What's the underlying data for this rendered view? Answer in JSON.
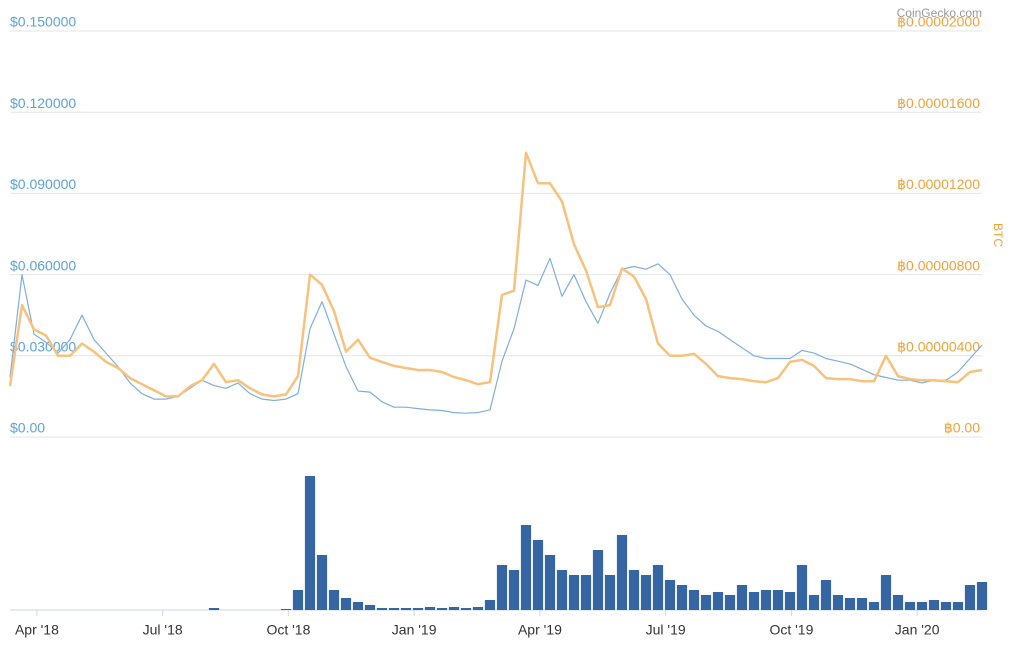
{
  "chart_data": {
    "type": "line",
    "watermark": "CoinGecko.com",
    "y2_label": "BTC",
    "xlim": [
      "2018-03",
      "2020-03"
    ],
    "xticks": [
      {
        "value": "2018-04",
        "label": "Apr '18"
      },
      {
        "value": "2018-07",
        "label": "Jul '18"
      },
      {
        "value": "2018-10",
        "label": "Oct '18"
      },
      {
        "value": "2019-01",
        "label": "Jan '19"
      },
      {
        "value": "2019-04",
        "label": "Apr '19"
      },
      {
        "value": "2019-07",
        "label": "Jul '19"
      },
      {
        "value": "2019-10",
        "label": "Oct '19"
      },
      {
        "value": "2020-01",
        "label": "Jan '20"
      }
    ],
    "ylim": [
      0,
      0.15
    ],
    "yticks": [
      {
        "value": 0,
        "label": "$0.00"
      },
      {
        "value": 0.03,
        "label": "$0.030000"
      },
      {
        "value": 0.06,
        "label": "$0.060000"
      },
      {
        "value": 0.09,
        "label": "$0.090000"
      },
      {
        "value": 0.12,
        "label": "$0.120000"
      },
      {
        "value": 0.15,
        "label": "$0.150000"
      }
    ],
    "y2lim": [
      0,
      2e-05
    ],
    "y2ticks": [
      {
        "value": 0,
        "label": "฿0.00"
      },
      {
        "value": 4e-06,
        "label": "฿0.00000400"
      },
      {
        "value": 8e-06,
        "label": "฿0.00000800"
      },
      {
        "value": 1.2e-05,
        "label": "฿0.00001200"
      },
      {
        "value": 1.6e-05,
        "label": "฿0.00001600"
      },
      {
        "value": 2e-05,
        "label": "฿0.00002000"
      }
    ],
    "grid": true,
    "series": [
      {
        "color": "#7eaee0",
        "values": [
          0.022,
          0.06,
          0.038,
          0.035,
          0.031,
          0.036,
          0.045,
          0.036,
          0.031,
          0.026,
          0.02,
          0.016,
          0.014,
          0.014,
          0.015,
          0.018,
          0.021,
          0.019,
          0.018,
          0.02,
          0.016,
          0.014,
          0.0135,
          0.014,
          0.016,
          0.04,
          0.05,
          0.038,
          0.026,
          0.017,
          0.0166,
          0.013,
          0.011,
          0.011,
          0.0105,
          0.01,
          0.0098,
          0.009,
          0.0088,
          0.009,
          0.01,
          0.028,
          0.04,
          0.058,
          0.056,
          0.066,
          0.052,
          0.06,
          0.05,
          0.042,
          0.053,
          0.062,
          0.063,
          0.062,
          0.064,
          0.06,
          0.051,
          0.045,
          0.041,
          0.039,
          0.036,
          0.033,
          0.03,
          0.029,
          0.029,
          0.029,
          0.032,
          0.031,
          0.029,
          0.028,
          0.027,
          0.025,
          0.023,
          0.022,
          0.021,
          0.021,
          0.02,
          0.021,
          0.021,
          0.024,
          0.029,
          0.034
        ]
      },
      {
        "axis": "y2",
        "color": "#f6c27c",
        "values": [
          2.5e-06,
          6.5e-06,
          5.3e-06,
          5e-06,
          4e-06,
          4e-06,
          4.6e-06,
          4.2e-06,
          3.7e-06,
          3.4e-06,
          2.9e-06,
          2.6e-06,
          2.3e-06,
          2e-06,
          2e-06,
          2.5e-06,
          2.8e-06,
          3.6e-06,
          2.7e-06,
          2.8e-06,
          2.4e-06,
          2.1e-06,
          2e-06,
          2.1e-06,
          3e-06,
          8e-06,
          7.5e-06,
          6.2e-06,
          4.2e-06,
          4.8e-06,
          3.9e-06,
          3.7e-06,
          3.5e-06,
          3.4e-06,
          3.3e-06,
          3.3e-06,
          3.2e-06,
          2.95e-06,
          2.8e-06,
          2.6e-06,
          2.7e-06,
          7e-06,
          7.2e-06,
          1.4e-05,
          1.25e-05,
          1.25e-05,
          1.16e-05,
          9.5e-06,
          8.2e-06,
          6.4e-06,
          6.5e-06,
          8.3e-06,
          7.9e-06,
          6.8e-06,
          4.6e-06,
          4e-06,
          4e-06,
          4.1e-06,
          3.6e-06,
          3e-06,
          2.9e-06,
          2.85e-06,
          2.75e-06,
          2.7e-06,
          2.9e-06,
          3.7e-06,
          3.8e-06,
          3.5e-06,
          2.9e-06,
          2.85e-06,
          2.85e-06,
          2.75e-06,
          2.75e-06,
          4e-06,
          3e-06,
          2.85e-06,
          2.8e-06,
          2.8e-06,
          2.75e-06,
          2.7e-06,
          3.2e-06,
          3.3e-06
        ]
      },
      {
        "type": "bar",
        "color": "#3566a3",
        "ylim": [
          0,
          140
        ],
        "values": [
          0,
          0,
          0,
          0,
          0,
          0,
          0,
          0,
          0,
          0,
          0,
          0,
          0,
          0,
          0,
          0,
          0,
          2,
          0,
          0,
          0,
          0,
          0,
          1,
          20,
          134,
          55,
          20,
          12,
          8,
          5,
          2,
          2,
          2,
          2,
          3,
          2,
          3,
          2,
          3,
          10,
          45,
          40,
          85,
          70,
          55,
          40,
          35,
          35,
          60,
          35,
          75,
          40,
          35,
          45,
          30,
          25,
          20,
          15,
          18,
          15,
          25,
          18,
          20,
          20,
          18,
          45,
          15,
          30,
          15,
          12,
          12,
          8,
          35,
          15,
          8,
          8,
          10,
          8,
          8,
          25,
          28
        ]
      }
    ]
  }
}
